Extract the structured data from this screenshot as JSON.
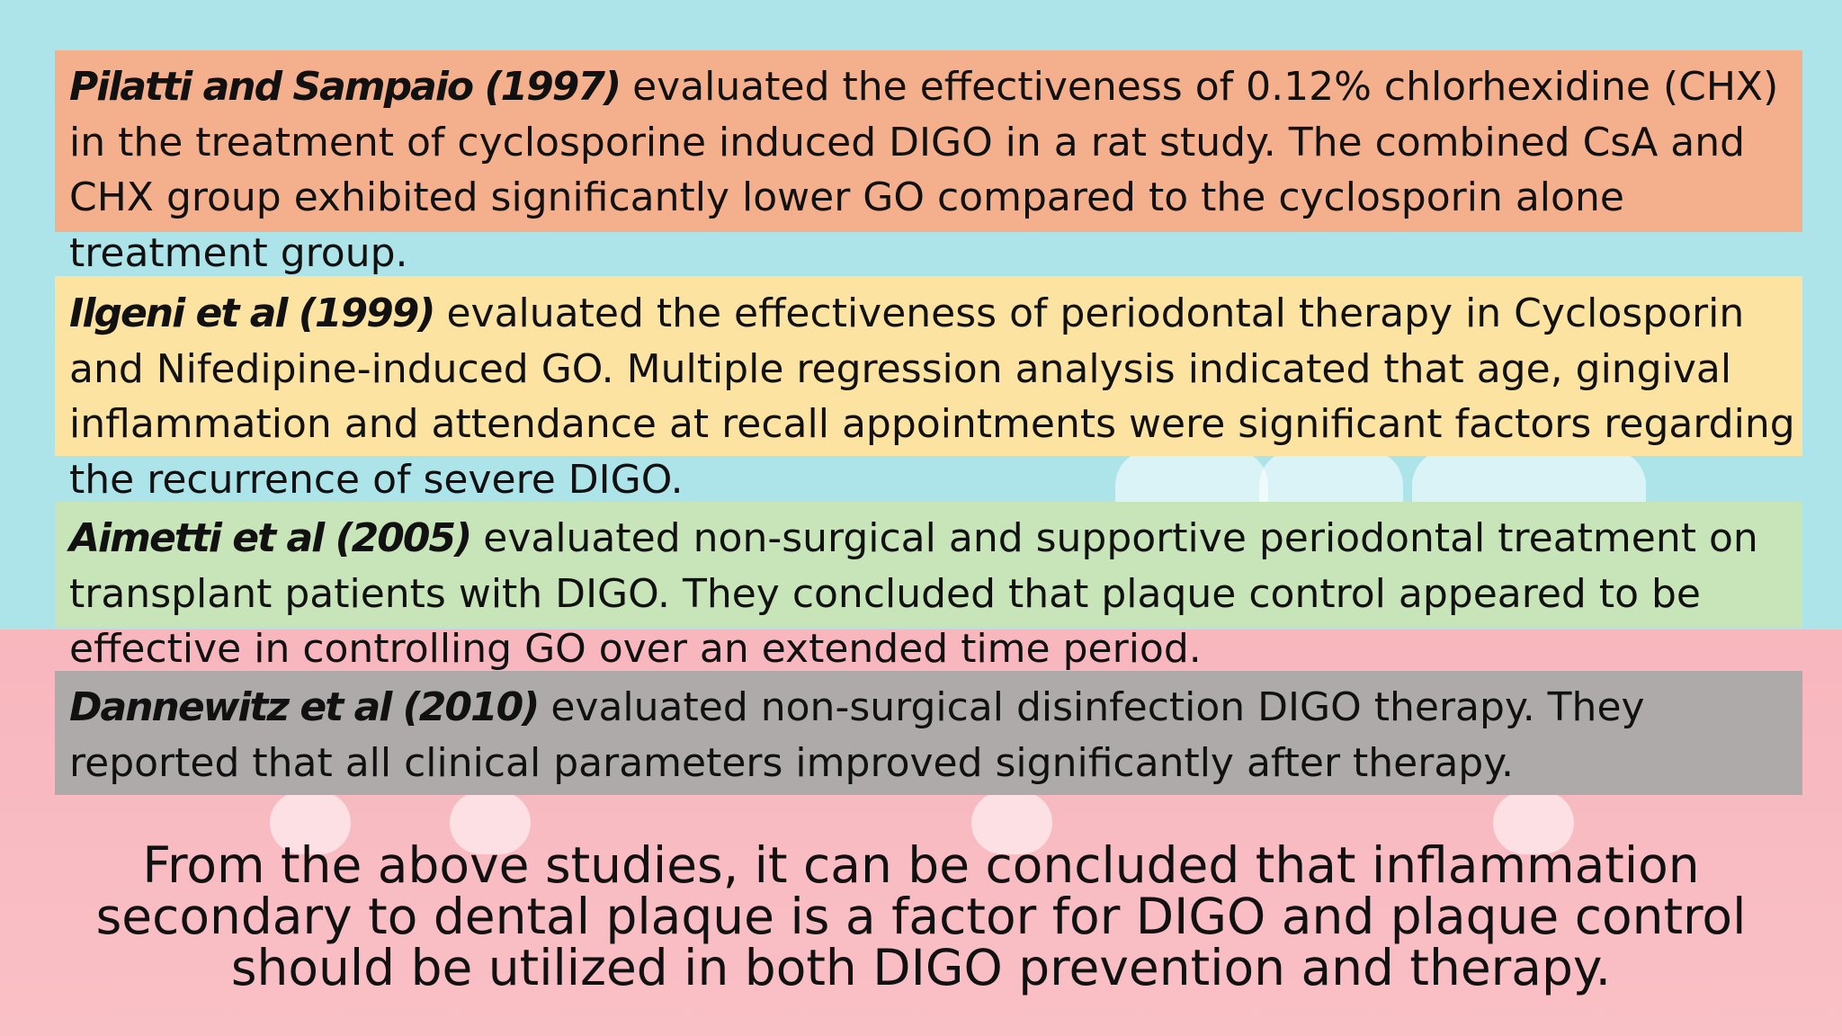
{
  "studies": [
    {
      "citation": "Pilatti and Sampaio (1997)",
      "text": " evaluated the effectiveness of 0.12% chlorhexidine (CHX) in the treatment of cyclosporine induced DIGO in a rat study. The combined CsA and CHX group exhibited significantly lower GO compared to the cyclosporin alone treatment group.",
      "band_color": "#f4b08c"
    },
    {
      "citation": "Ilgeni et al (1999)",
      "text": " evaluated the effectiveness of periodontal therapy in Cyclosporin and Nifedipine-induced GO. Multiple regression analysis indicated that age, gingival inflammation and attendance at recall appointments were significant factors regarding the recurrence of severe DIGO.",
      "band_color": "#fde3a2"
    },
    {
      "citation": "Aimetti et al (2005)",
      "text": " evaluated non-surgical and supportive periodontal treatment on transplant patients with DIGO. They concluded that plaque control appeared to be effective in controlling GO over an extended time period.",
      "band_color": "#c8e4b9"
    },
    {
      "citation": "Dannewitz et al (2010)",
      "text": " evaluated non-surgical disinfection DIGO therapy. They reported that all clinical parameters improved significantly after therapy.",
      "band_color": "#aeaaaa"
    }
  ],
  "conclusion": "From the above studies, it can be concluded that inflammation secondary to dental plaque is a factor for DIGO and plaque control should be utilized in both DIGO prevention and therapy.",
  "colors": {
    "background_top": "#ade4ea",
    "background_bottom": "#f8b6bd",
    "text": "#111111"
  }
}
